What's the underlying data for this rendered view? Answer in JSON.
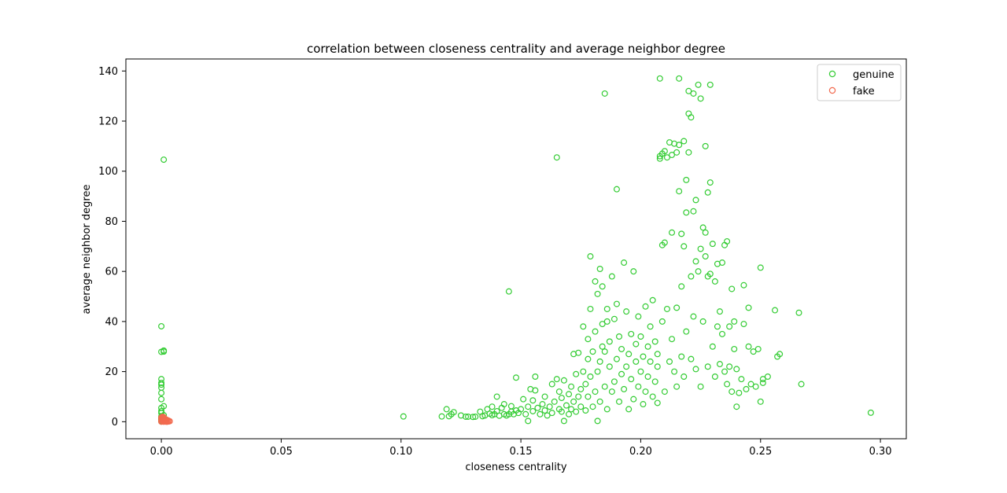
{
  "chart_data": {
    "type": "scatter",
    "title": "correlation between closeness centrality and average neighbor degree",
    "xlabel": "closeness centrality",
    "ylabel": "average neighbor degree",
    "xlim": [
      -0.0148,
      0.3108
    ],
    "ylim": [
      -6.8,
      144.8
    ],
    "xticks": [
      0.0,
      0.05,
      0.1,
      0.15,
      0.2,
      0.25,
      0.3
    ],
    "xtick_labels": [
      "0.00",
      "0.05",
      "0.10",
      "0.15",
      "0.20",
      "0.25",
      "0.30"
    ],
    "yticks": [
      0,
      20,
      40,
      60,
      80,
      100,
      120,
      140
    ],
    "ytick_labels": [
      "0",
      "20",
      "40",
      "60",
      "80",
      "100",
      "120",
      "140"
    ],
    "grid": false,
    "legend_position": "top-right",
    "series": [
      {
        "name": "genuine",
        "color": "#33cc33",
        "marker": "open-circle",
        "points": [
          [
            0.0,
            0.2
          ],
          [
            0.0,
            0.8
          ],
          [
            0.0,
            1.2
          ],
          [
            0.001,
            0.5
          ],
          [
            0.0,
            1.6
          ],
          [
            0.0,
            2.1
          ],
          [
            0.001,
            2.6
          ],
          [
            0.0,
            3.5
          ],
          [
            0.0,
            4.2
          ],
          [
            0.0,
            5.5
          ],
          [
            0.001,
            6.2
          ],
          [
            0.0,
            9.0
          ],
          [
            0.0,
            11.5
          ],
          [
            0.0,
            13.6
          ],
          [
            0.0,
            14.8
          ],
          [
            0.0,
            15.5
          ],
          [
            0.0,
            17.0
          ],
          [
            0.0,
            27.9
          ],
          [
            0.001,
            28.4
          ],
          [
            0.001,
            28.0
          ],
          [
            0.0,
            38.1
          ],
          [
            0.001,
            104.6
          ],
          [
            0.001,
            0.3
          ],
          [
            0.0,
            1.0
          ],
          [
            0.101,
            2.1
          ],
          [
            0.117,
            2.1
          ],
          [
            0.119,
            5.0
          ],
          [
            0.12,
            2.2
          ],
          [
            0.122,
            3.8
          ],
          [
            0.121,
            3.0
          ],
          [
            0.125,
            2.5
          ],
          [
            0.127,
            2.0
          ],
          [
            0.128,
            2.0
          ],
          [
            0.13,
            1.9
          ],
          [
            0.131,
            2.0
          ],
          [
            0.133,
            4.0
          ],
          [
            0.134,
            2.2
          ],
          [
            0.135,
            2.5
          ],
          [
            0.136,
            5.0
          ],
          [
            0.137,
            3.2
          ],
          [
            0.138,
            2.6
          ],
          [
            0.138,
            6.0
          ],
          [
            0.139,
            3.0
          ],
          [
            0.14,
            4.2
          ],
          [
            0.14,
            10.0
          ],
          [
            0.141,
            2.4
          ],
          [
            0.142,
            5.5
          ],
          [
            0.143,
            3.0
          ],
          [
            0.143,
            7.0
          ],
          [
            0.144,
            2.5
          ],
          [
            0.145,
            3.0
          ],
          [
            0.145,
            52.0
          ],
          [
            0.146,
            4.0
          ],
          [
            0.146,
            6.2
          ],
          [
            0.147,
            3.0
          ],
          [
            0.148,
            4.5
          ],
          [
            0.148,
            17.6
          ],
          [
            0.149,
            3.5
          ],
          [
            0.15,
            5.0
          ],
          [
            0.151,
            9.0
          ],
          [
            0.152,
            3.0
          ],
          [
            0.153,
            0.3
          ],
          [
            0.153,
            6.0
          ],
          [
            0.154,
            13.0
          ],
          [
            0.155,
            4.2
          ],
          [
            0.155,
            8.5
          ],
          [
            0.156,
            12.5
          ],
          [
            0.156,
            18.0
          ],
          [
            0.157,
            5.5
          ],
          [
            0.158,
            3.0
          ],
          [
            0.159,
            7.0
          ],
          [
            0.16,
            4.5
          ],
          [
            0.16,
            10.0
          ],
          [
            0.161,
            2.5
          ],
          [
            0.162,
            6.0
          ],
          [
            0.163,
            3.5
          ],
          [
            0.163,
            15.0
          ],
          [
            0.164,
            8.0
          ],
          [
            0.165,
            17.0
          ],
          [
            0.165,
            105.5
          ],
          [
            0.166,
            5.0
          ],
          [
            0.166,
            12.0
          ],
          [
            0.167,
            4.0
          ],
          [
            0.167,
            9.5
          ],
          [
            0.168,
            16.5
          ],
          [
            0.168,
            0.3
          ],
          [
            0.169,
            6.5
          ],
          [
            0.17,
            3.0
          ],
          [
            0.17,
            11.0
          ],
          [
            0.171,
            14.0
          ],
          [
            0.171,
            5.0
          ],
          [
            0.172,
            8.0
          ],
          [
            0.172,
            27.0
          ],
          [
            0.173,
            19.0
          ],
          [
            0.173,
            4.0
          ],
          [
            0.174,
            10.0
          ],
          [
            0.174,
            27.5
          ],
          [
            0.175,
            13.0
          ],
          [
            0.175,
            6.0
          ],
          [
            0.176,
            20.0
          ],
          [
            0.176,
            38.0
          ],
          [
            0.177,
            4.5
          ],
          [
            0.177,
            15.0
          ],
          [
            0.178,
            10.0
          ],
          [
            0.178,
            25.0
          ],
          [
            0.178,
            33.0
          ],
          [
            0.179,
            66.0
          ],
          [
            0.179,
            18.0
          ],
          [
            0.179,
            45.0
          ],
          [
            0.18,
            6.0
          ],
          [
            0.18,
            28.0
          ],
          [
            0.181,
            12.0
          ],
          [
            0.181,
            36.0
          ],
          [
            0.181,
            56.0
          ],
          [
            0.182,
            0.3
          ],
          [
            0.182,
            20.0
          ],
          [
            0.182,
            51.0
          ],
          [
            0.183,
            8.0
          ],
          [
            0.183,
            24.0
          ],
          [
            0.183,
            61.0
          ],
          [
            0.184,
            30.0
          ],
          [
            0.184,
            39.0
          ],
          [
            0.184,
            54.0
          ],
          [
            0.185,
            131.0
          ],
          [
            0.185,
            14.0
          ],
          [
            0.185,
            28.0
          ],
          [
            0.186,
            5.0
          ],
          [
            0.186,
            40.0
          ],
          [
            0.186,
            45.0
          ],
          [
            0.187,
            22.0
          ],
          [
            0.187,
            32.0
          ],
          [
            0.188,
            12.0
          ],
          [
            0.188,
            58.0
          ],
          [
            0.189,
            16.0
          ],
          [
            0.189,
            41.0
          ],
          [
            0.19,
            25.0
          ],
          [
            0.19,
            47.0
          ],
          [
            0.19,
            92.8
          ],
          [
            0.191,
            8.0
          ],
          [
            0.191,
            34.0
          ],
          [
            0.192,
            19.0
          ],
          [
            0.192,
            29.0
          ],
          [
            0.193,
            63.5
          ],
          [
            0.193,
            13.0
          ],
          [
            0.194,
            44.0
          ],
          [
            0.194,
            22.0
          ],
          [
            0.195,
            5.0
          ],
          [
            0.195,
            27.0
          ],
          [
            0.196,
            35.0
          ],
          [
            0.196,
            17.0
          ],
          [
            0.197,
            60.0
          ],
          [
            0.197,
            9.0
          ],
          [
            0.198,
            31.0
          ],
          [
            0.198,
            24.0
          ],
          [
            0.199,
            14.0
          ],
          [
            0.199,
            42.0
          ],
          [
            0.2,
            20.0
          ],
          [
            0.2,
            34.0
          ],
          [
            0.201,
            7.0
          ],
          [
            0.201,
            26.0
          ],
          [
            0.202,
            12.0
          ],
          [
            0.202,
            46.0
          ],
          [
            0.203,
            30.0
          ],
          [
            0.203,
            18.0
          ],
          [
            0.204,
            38.0
          ],
          [
            0.204,
            24.0
          ],
          [
            0.205,
            48.5
          ],
          [
            0.205,
            10.0
          ],
          [
            0.206,
            32.0
          ],
          [
            0.206,
            16.0
          ],
          [
            0.207,
            7.5
          ],
          [
            0.207,
            22.0
          ],
          [
            0.207,
            27.0
          ],
          [
            0.208,
            137.0
          ],
          [
            0.208,
            105.0
          ],
          [
            0.208,
            106.0
          ],
          [
            0.209,
            107.0
          ],
          [
            0.209,
            70.5
          ],
          [
            0.209,
            40.0
          ],
          [
            0.21,
            108.0
          ],
          [
            0.21,
            71.5
          ],
          [
            0.21,
            12.0
          ],
          [
            0.211,
            105.5
          ],
          [
            0.211,
            45.0
          ],
          [
            0.212,
            111.5
          ],
          [
            0.212,
            24.0
          ],
          [
            0.213,
            106.5
          ],
          [
            0.213,
            75.5
          ],
          [
            0.213,
            33.0
          ],
          [
            0.214,
            111.0
          ],
          [
            0.214,
            20.0
          ],
          [
            0.215,
            107.5
          ],
          [
            0.215,
            45.5
          ],
          [
            0.215,
            14.0
          ],
          [
            0.216,
            137.0
          ],
          [
            0.216,
            110.5
          ],
          [
            0.216,
            92.0
          ],
          [
            0.217,
            75.0
          ],
          [
            0.217,
            54.0
          ],
          [
            0.217,
            26.0
          ],
          [
            0.218,
            112.0
          ],
          [
            0.218,
            70.0
          ],
          [
            0.218,
            18.0
          ],
          [
            0.219,
            96.5
          ],
          [
            0.219,
            83.5
          ],
          [
            0.219,
            36.0
          ],
          [
            0.22,
            132.0
          ],
          [
            0.22,
            123.0
          ],
          [
            0.22,
            107.5
          ],
          [
            0.221,
            121.5
          ],
          [
            0.221,
            58.0
          ],
          [
            0.221,
            25.0
          ],
          [
            0.222,
            131.0
          ],
          [
            0.222,
            84.0
          ],
          [
            0.222,
            42.0
          ],
          [
            0.223,
            88.5
          ],
          [
            0.223,
            64.0
          ],
          [
            0.223,
            21.0
          ],
          [
            0.224,
            134.5
          ],
          [
            0.224,
            60.0
          ],
          [
            0.225,
            129.0
          ],
          [
            0.225,
            69.0
          ],
          [
            0.225,
            14.0
          ],
          [
            0.226,
            77.5
          ],
          [
            0.226,
            40.0
          ],
          [
            0.227,
            110.0
          ],
          [
            0.227,
            75.5
          ],
          [
            0.227,
            66.0
          ],
          [
            0.228,
            91.5
          ],
          [
            0.228,
            58.0
          ],
          [
            0.228,
            22.0
          ],
          [
            0.229,
            134.5
          ],
          [
            0.229,
            95.5
          ],
          [
            0.229,
            59.0
          ],
          [
            0.23,
            71.0
          ],
          [
            0.23,
            30.0
          ],
          [
            0.231,
            56.0
          ],
          [
            0.231,
            18.0
          ],
          [
            0.232,
            63.0
          ],
          [
            0.232,
            38.0
          ],
          [
            0.233,
            44.0
          ],
          [
            0.233,
            23.0
          ],
          [
            0.234,
            63.5
          ],
          [
            0.234,
            35.0
          ],
          [
            0.235,
            70.5
          ],
          [
            0.235,
            20.0
          ],
          [
            0.236,
            72.0
          ],
          [
            0.236,
            15.0
          ],
          [
            0.237,
            38.0
          ],
          [
            0.237,
            22.0
          ],
          [
            0.238,
            53.0
          ],
          [
            0.238,
            12.0
          ],
          [
            0.239,
            29.0
          ],
          [
            0.239,
            40.0
          ],
          [
            0.24,
            6.0
          ],
          [
            0.24,
            21.0
          ],
          [
            0.241,
            11.5
          ],
          [
            0.242,
            17.0
          ],
          [
            0.243,
            54.5
          ],
          [
            0.243,
            39.0
          ],
          [
            0.244,
            13.0
          ],
          [
            0.245,
            30.0
          ],
          [
            0.245,
            45.5
          ],
          [
            0.246,
            15.0
          ],
          [
            0.247,
            28.0
          ],
          [
            0.248,
            14.0
          ],
          [
            0.249,
            29.0
          ],
          [
            0.25,
            61.5
          ],
          [
            0.25,
            8.0
          ],
          [
            0.251,
            17.0
          ],
          [
            0.251,
            15.5
          ],
          [
            0.253,
            18.0
          ],
          [
            0.256,
            44.5
          ],
          [
            0.257,
            26.0
          ],
          [
            0.258,
            27.0
          ],
          [
            0.266,
            43.5
          ],
          [
            0.267,
            15.0
          ],
          [
            0.296,
            3.6
          ]
        ]
      },
      {
        "name": "fake",
        "color": "#f26a4f",
        "marker": "open-circle",
        "points": [
          [
            0.0,
            0.0
          ],
          [
            0.0005,
            0.3
          ],
          [
            0.001,
            0.5
          ],
          [
            0.0015,
            0.2
          ],
          [
            0.002,
            0.4
          ],
          [
            0.0025,
            0.6
          ],
          [
            0.003,
            0.1
          ],
          [
            0.0005,
            0.8
          ],
          [
            0.001,
            1.0
          ],
          [
            0.0015,
            0.7
          ],
          [
            0.002,
            0.9
          ],
          [
            0.0,
            1.2
          ],
          [
            0.0005,
            1.5
          ],
          [
            0.001,
            1.3
          ],
          [
            0.0015,
            1.1
          ],
          [
            0.0,
            1.7
          ],
          [
            0.0005,
            2.0
          ],
          [
            0.001,
            1.8
          ],
          [
            0.002,
            0.0
          ],
          [
            0.003,
            0.4
          ],
          [
            0.0035,
            0.2
          ],
          [
            0.0025,
            0.0
          ],
          [
            0.0,
            0.5
          ],
          [
            0.001,
            0.0
          ]
        ]
      }
    ]
  }
}
